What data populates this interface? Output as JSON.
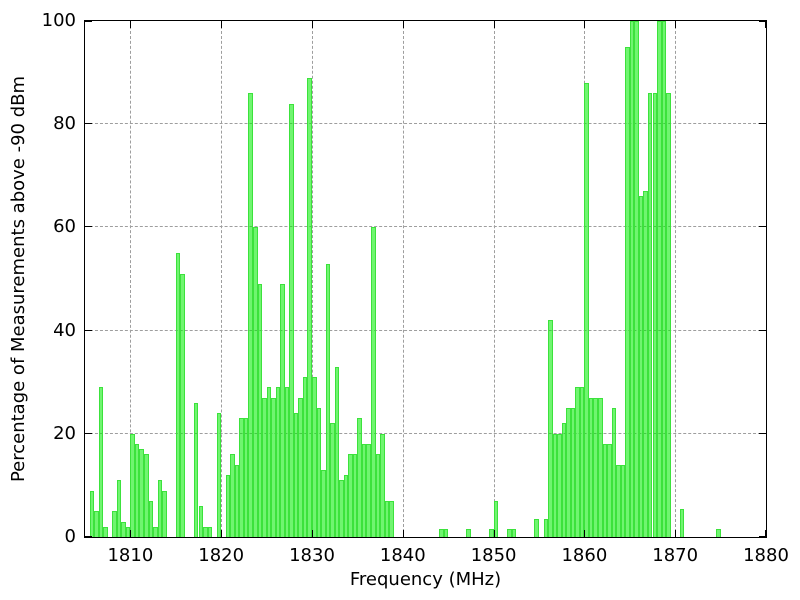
{
  "chart_data": {
    "type": "bar",
    "title": "",
    "xlabel": "Frequency (MHz)",
    "ylabel": "Percentage of Measurements above -90 dBm",
    "xlim": [
      1805,
      1880
    ],
    "ylim": [
      0,
      100
    ],
    "xticks": [
      1810,
      1820,
      1830,
      1840,
      1850,
      1860,
      1870,
      1880
    ],
    "yticks": [
      0,
      20,
      40,
      60,
      80,
      100
    ],
    "grid": "dashed",
    "legend": "none",
    "bin_width_mhz": 0.5,
    "colors": {
      "bar_fill": "#70fa70",
      "bar_edge": "#3ce23c",
      "grid": "#9e9e9e",
      "axis": "#000000"
    },
    "points": [
      [
        1805.5,
        9
      ],
      [
        1806,
        5
      ],
      [
        1806.5,
        29
      ],
      [
        1807,
        2
      ],
      [
        1808,
        5
      ],
      [
        1808.5,
        11
      ],
      [
        1809,
        3
      ],
      [
        1809.5,
        2
      ],
      [
        1810,
        20
      ],
      [
        1810.5,
        18
      ],
      [
        1811,
        17
      ],
      [
        1811.5,
        16
      ],
      [
        1812,
        7
      ],
      [
        1812.5,
        2
      ],
      [
        1813,
        11
      ],
      [
        1813.5,
        9
      ],
      [
        1815,
        55
      ],
      [
        1815.5,
        51
      ],
      [
        1817,
        26
      ],
      [
        1817.5,
        6
      ],
      [
        1818,
        2
      ],
      [
        1818.5,
        2
      ],
      [
        1819.5,
        24
      ],
      [
        1820.5,
        12
      ],
      [
        1821,
        16
      ],
      [
        1821.5,
        14
      ],
      [
        1822,
        23
      ],
      [
        1822.5,
        23
      ],
      [
        1823,
        86
      ],
      [
        1823.5,
        60
      ],
      [
        1824,
        49
      ],
      [
        1824.5,
        27
      ],
      [
        1825,
        29
      ],
      [
        1825.5,
        27
      ],
      [
        1826,
        29
      ],
      [
        1826.5,
        49
      ],
      [
        1827,
        29
      ],
      [
        1827.5,
        84
      ],
      [
        1828,
        24
      ],
      [
        1828.5,
        27
      ],
      [
        1829,
        31
      ],
      [
        1829.5,
        89
      ],
      [
        1830,
        31
      ],
      [
        1830.5,
        25
      ],
      [
        1831,
        13
      ],
      [
        1831.5,
        53
      ],
      [
        1832,
        22
      ],
      [
        1832.5,
        33
      ],
      [
        1833,
        11
      ],
      [
        1833.5,
        12
      ],
      [
        1834,
        16
      ],
      [
        1834.5,
        16
      ],
      [
        1835,
        23
      ],
      [
        1835.5,
        18
      ],
      [
        1836,
        18
      ],
      [
        1836.5,
        60
      ],
      [
        1837,
        16
      ],
      [
        1837.5,
        20
      ],
      [
        1838,
        7
      ],
      [
        1838.5,
        7
      ],
      [
        1844,
        1.5
      ],
      [
        1844.5,
        1.5
      ],
      [
        1847,
        1.5
      ],
      [
        1849.5,
        1.5
      ],
      [
        1850,
        7
      ],
      [
        1851.5,
        1.5
      ],
      [
        1852,
        1.5
      ],
      [
        1854.5,
        3.5
      ],
      [
        1855.5,
        3.5
      ],
      [
        1856,
        42
      ],
      [
        1856.5,
        20
      ],
      [
        1857,
        20
      ],
      [
        1857.5,
        22
      ],
      [
        1858,
        25
      ],
      [
        1858.5,
        25
      ],
      [
        1859,
        29
      ],
      [
        1859.5,
        29
      ],
      [
        1860,
        88
      ],
      [
        1860.5,
        27
      ],
      [
        1861,
        27
      ],
      [
        1861.5,
        27
      ],
      [
        1862,
        18
      ],
      [
        1862.5,
        18
      ],
      [
        1863,
        25
      ],
      [
        1863.5,
        14
      ],
      [
        1864,
        14
      ],
      [
        1864.5,
        95
      ],
      [
        1865,
        100
      ],
      [
        1865.5,
        100
      ],
      [
        1866,
        66
      ],
      [
        1866.5,
        67
      ],
      [
        1867,
        86
      ],
      [
        1867.5,
        86
      ],
      [
        1868,
        100
      ],
      [
        1868.5,
        100
      ],
      [
        1869,
        86
      ],
      [
        1870.5,
        5.5
      ],
      [
        1874.5,
        1.5
      ]
    ]
  }
}
